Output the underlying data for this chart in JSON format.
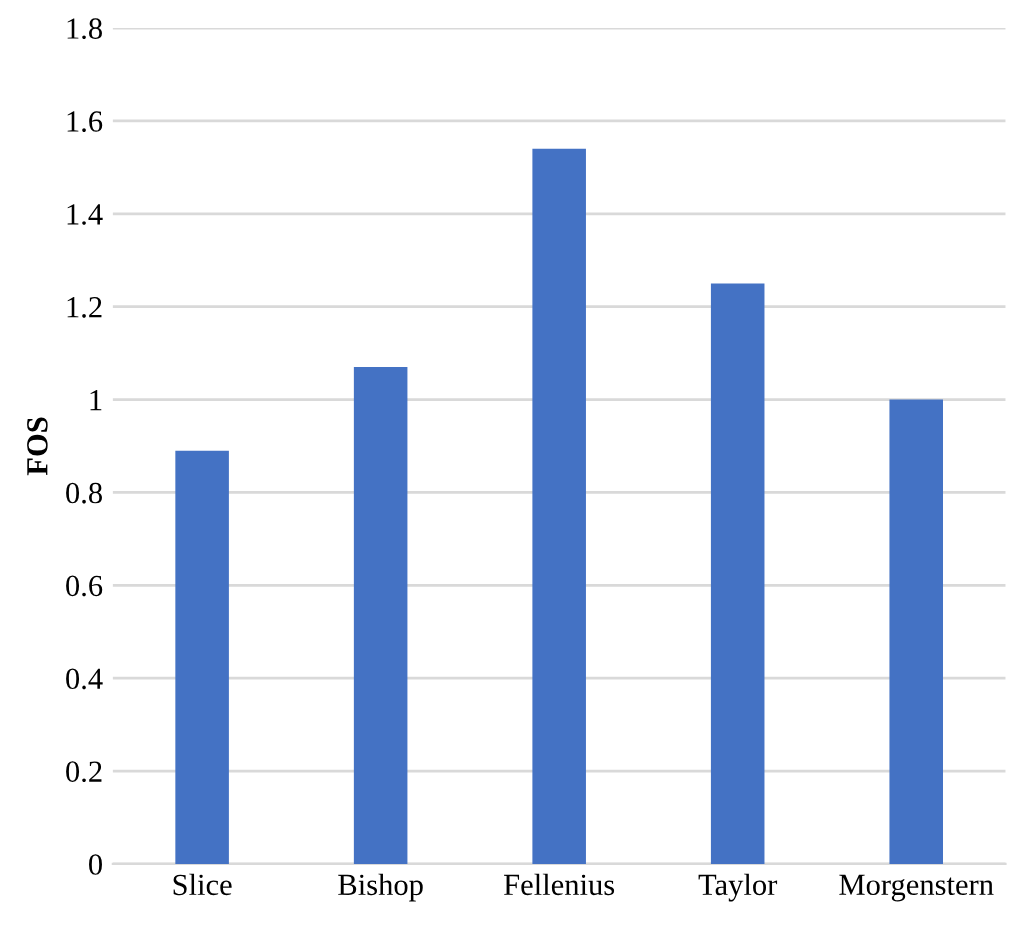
{
  "chart_data": {
    "type": "bar",
    "ylabel": "FOS",
    "categories": [
      "Slice",
      "Bishop",
      "Fellenius",
      "Taylor",
      "Morgenstern"
    ],
    "values": [
      0.89,
      1.07,
      1.54,
      1.25,
      1.0
    ],
    "color": "#4472c4",
    "ylim": [
      0,
      1.8
    ],
    "yticks": [
      0,
      0.2,
      0.4,
      0.6,
      0.8,
      {
        "value": 1,
        "label": "1"
      },
      1.2,
      1.4,
      1.6,
      1.8
    ],
    "grid": "y"
  }
}
